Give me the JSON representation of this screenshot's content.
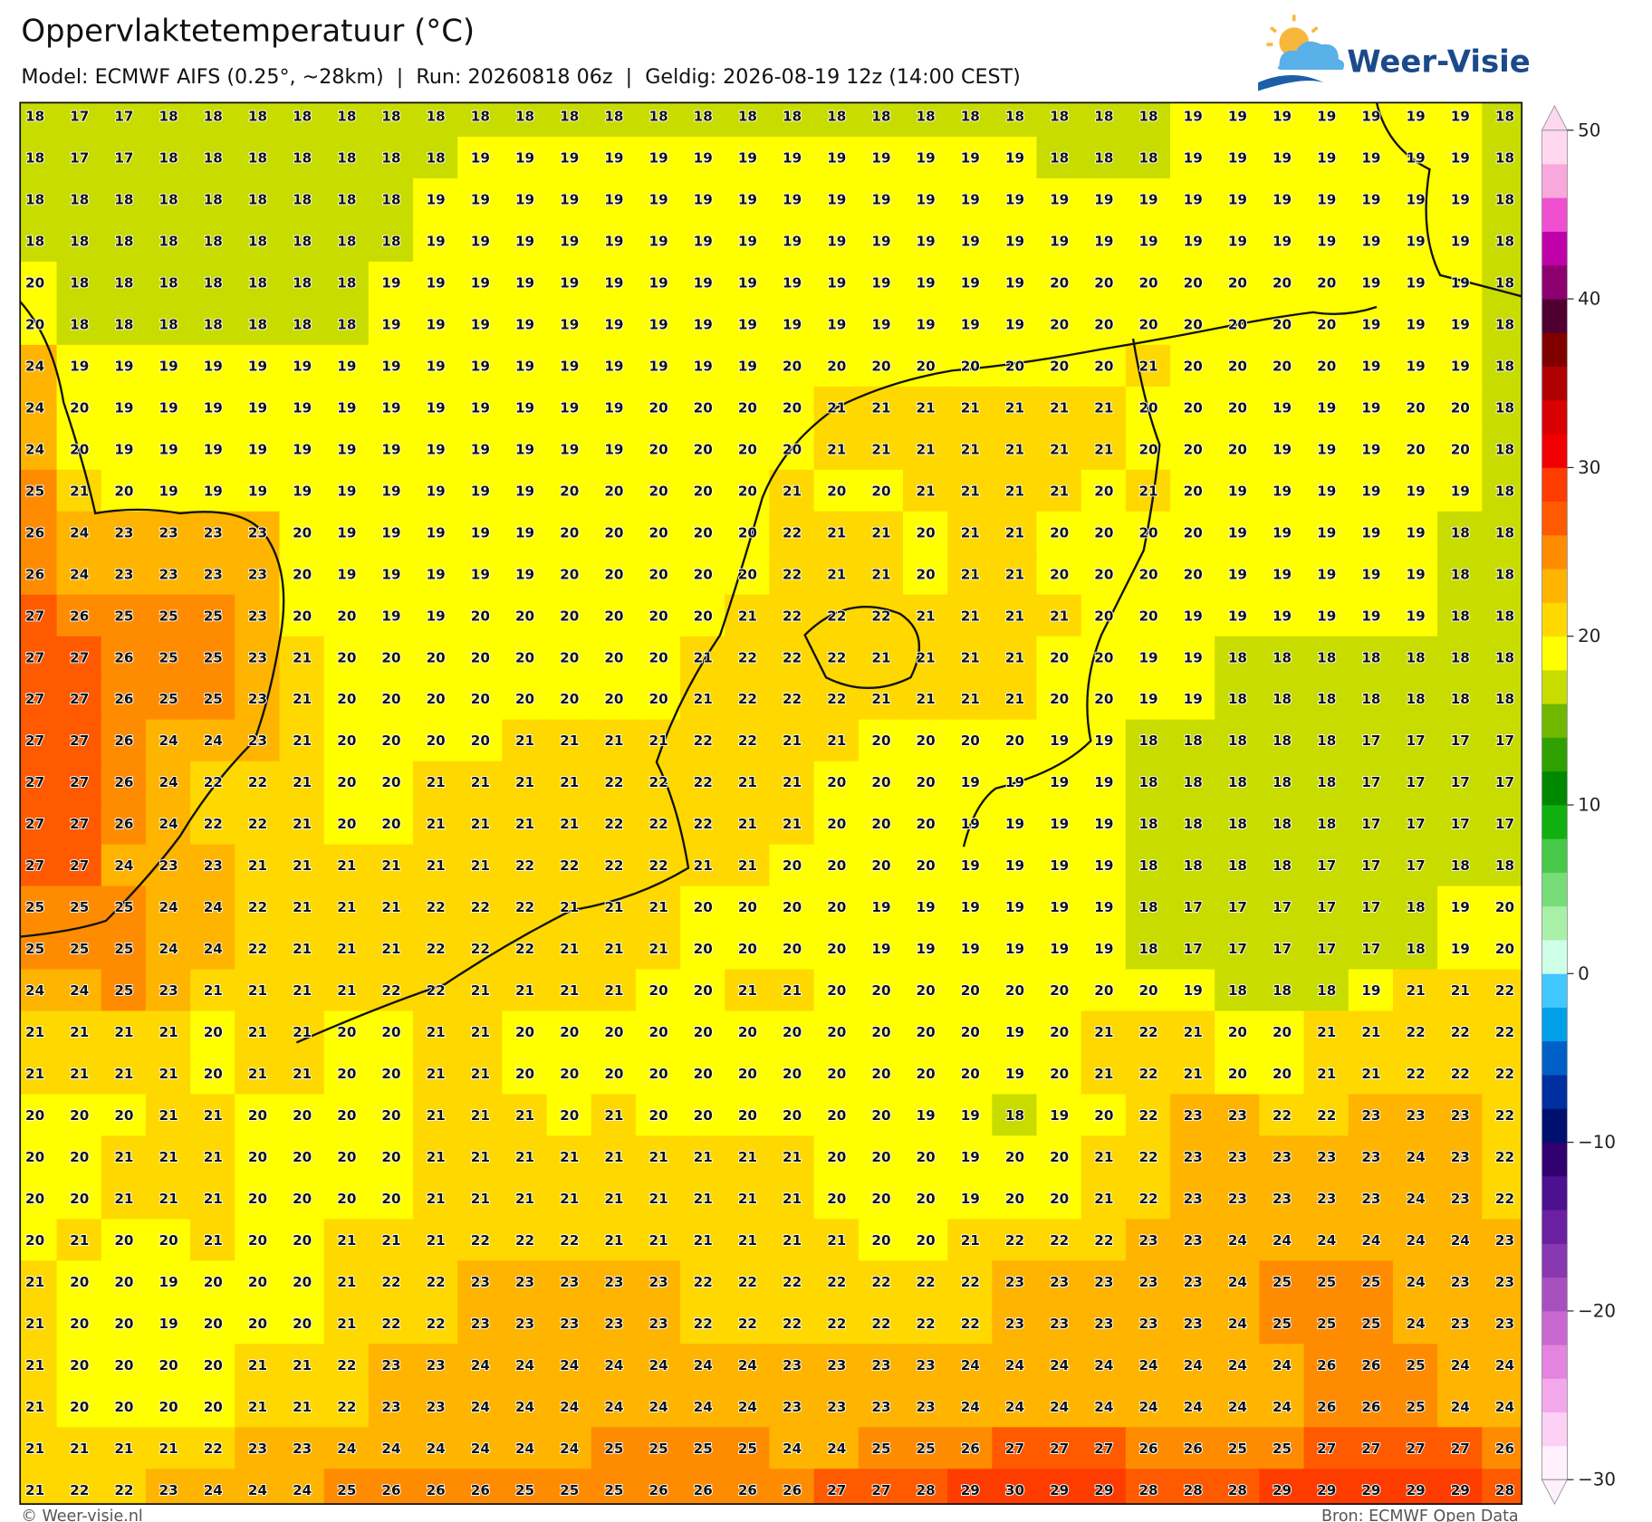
{
  "header": {
    "title": "Oppervlaktetemperatuur (°C)",
    "subtitle": "Model: ECMWF AIFS (0.25°, ~28km)  |  Run: 20260818 06z  |  Geldig: 2026-08-19 12z (14:00 CEST)",
    "logo": "Weer-Visie"
  },
  "map": {
    "grid": [
      [
        18,
        17,
        17,
        18,
        18,
        18,
        18,
        18,
        18,
        18,
        18,
        18,
        18,
        18,
        18,
        18,
        18,
        18,
        18,
        18,
        18,
        18,
        18,
        18,
        18,
        18,
        19,
        19,
        19,
        19,
        19,
        19,
        19,
        18
      ],
      [
        18,
        17,
        17,
        18,
        18,
        18,
        18,
        18,
        18,
        18,
        19,
        19,
        19,
        19,
        19,
        19,
        19,
        19,
        19,
        19,
        19,
        19,
        19,
        18,
        18,
        18,
        19,
        19,
        19,
        19,
        19,
        19,
        19,
        18
      ],
      [
        18,
        18,
        18,
        18,
        18,
        18,
        18,
        18,
        18,
        19,
        19,
        19,
        19,
        19,
        19,
        19,
        19,
        19,
        19,
        19,
        19,
        19,
        19,
        19,
        19,
        19,
        19,
        19,
        19,
        19,
        19,
        19,
        19,
        18
      ],
      [
        18,
        18,
        18,
        18,
        18,
        18,
        18,
        18,
        18,
        19,
        19,
        19,
        19,
        19,
        19,
        19,
        19,
        19,
        19,
        19,
        19,
        19,
        19,
        19,
        19,
        19,
        19,
        19,
        19,
        19,
        19,
        19,
        19,
        18
      ],
      [
        20,
        18,
        18,
        18,
        18,
        18,
        18,
        18,
        19,
        19,
        19,
        19,
        19,
        19,
        19,
        19,
        19,
        19,
        19,
        19,
        19,
        19,
        19,
        20,
        20,
        20,
        20,
        20,
        20,
        20,
        19,
        19,
        19,
        18
      ],
      [
        20,
        18,
        18,
        18,
        18,
        18,
        18,
        18,
        19,
        19,
        19,
        19,
        19,
        19,
        19,
        19,
        19,
        19,
        19,
        19,
        19,
        19,
        19,
        20,
        20,
        20,
        20,
        20,
        20,
        20,
        19,
        19,
        19,
        18
      ],
      [
        24,
        19,
        19,
        19,
        19,
        19,
        19,
        19,
        19,
        19,
        19,
        19,
        19,
        19,
        19,
        19,
        19,
        20,
        20,
        20,
        20,
        20,
        20,
        20,
        20,
        21,
        20,
        20,
        20,
        20,
        19,
        19,
        19,
        18
      ],
      [
        24,
        20,
        19,
        19,
        19,
        19,
        19,
        19,
        19,
        19,
        19,
        19,
        19,
        19,
        20,
        20,
        20,
        20,
        21,
        21,
        21,
        21,
        21,
        21,
        21,
        20,
        20,
        20,
        19,
        19,
        19,
        20,
        20,
        18
      ],
      [
        24,
        20,
        19,
        19,
        19,
        19,
        19,
        19,
        19,
        19,
        19,
        19,
        19,
        19,
        20,
        20,
        20,
        20,
        21,
        21,
        21,
        21,
        21,
        21,
        21,
        20,
        20,
        20,
        19,
        19,
        19,
        20,
        20,
        18
      ],
      [
        25,
        21,
        20,
        19,
        19,
        19,
        19,
        19,
        19,
        19,
        19,
        19,
        20,
        20,
        20,
        20,
        20,
        21,
        20,
        20,
        21,
        21,
        21,
        21,
        20,
        21,
        20,
        19,
        19,
        19,
        19,
        19,
        19,
        18
      ],
      [
        26,
        24,
        23,
        23,
        23,
        23,
        20,
        19,
        19,
        19,
        19,
        19,
        20,
        20,
        20,
        20,
        20,
        22,
        21,
        21,
        20,
        21,
        21,
        20,
        20,
        20,
        20,
        19,
        19,
        19,
        19,
        19,
        18,
        18
      ],
      [
        26,
        24,
        23,
        23,
        23,
        23,
        20,
        19,
        19,
        19,
        19,
        19,
        20,
        20,
        20,
        20,
        20,
        22,
        21,
        21,
        20,
        21,
        21,
        20,
        20,
        20,
        20,
        19,
        19,
        19,
        19,
        19,
        18,
        18
      ],
      [
        27,
        26,
        25,
        25,
        25,
        23,
        20,
        20,
        19,
        19,
        20,
        20,
        20,
        20,
        20,
        20,
        21,
        22,
        22,
        22,
        21,
        21,
        21,
        21,
        20,
        20,
        19,
        19,
        19,
        19,
        19,
        19,
        18,
        18
      ],
      [
        27,
        27,
        26,
        25,
        25,
        23,
        21,
        20,
        20,
        20,
        20,
        20,
        20,
        20,
        20,
        21,
        22,
        22,
        22,
        21,
        21,
        21,
        21,
        20,
        20,
        19,
        19,
        18,
        18,
        18,
        18,
        18,
        18,
        18
      ],
      [
        27,
        27,
        26,
        25,
        25,
        23,
        21,
        20,
        20,
        20,
        20,
        20,
        20,
        20,
        20,
        21,
        22,
        22,
        22,
        21,
        21,
        21,
        21,
        20,
        20,
        19,
        19,
        18,
        18,
        18,
        18,
        18,
        18,
        18
      ],
      [
        27,
        27,
        26,
        24,
        24,
        23,
        21,
        20,
        20,
        20,
        20,
        21,
        21,
        21,
        21,
        22,
        22,
        21,
        21,
        20,
        20,
        20,
        20,
        19,
        19,
        18,
        18,
        18,
        18,
        18,
        17,
        17,
        17,
        17
      ],
      [
        27,
        27,
        26,
        24,
        22,
        22,
        21,
        20,
        20,
        21,
        21,
        21,
        21,
        22,
        22,
        22,
        21,
        21,
        20,
        20,
        20,
        19,
        19,
        19,
        19,
        18,
        18,
        18,
        18,
        18,
        17,
        17,
        17,
        17
      ],
      [
        27,
        27,
        26,
        24,
        22,
        22,
        21,
        20,
        20,
        21,
        21,
        21,
        21,
        22,
        22,
        22,
        21,
        21,
        20,
        20,
        20,
        19,
        19,
        19,
        19,
        18,
        18,
        18,
        18,
        18,
        17,
        17,
        17,
        17
      ],
      [
        27,
        27,
        24,
        23,
        23,
        21,
        21,
        21,
        21,
        21,
        21,
        22,
        22,
        22,
        22,
        21,
        21,
        20,
        20,
        20,
        20,
        19,
        19,
        19,
        19,
        18,
        18,
        18,
        18,
        17,
        17,
        17,
        18,
        18
      ],
      [
        25,
        25,
        25,
        24,
        24,
        22,
        21,
        21,
        21,
        22,
        22,
        22,
        21,
        21,
        21,
        20,
        20,
        20,
        20,
        19,
        19,
        19,
        19,
        19,
        19,
        18,
        17,
        17,
        17,
        17,
        17,
        18,
        19,
        20
      ],
      [
        25,
        25,
        25,
        24,
        24,
        22,
        21,
        21,
        21,
        22,
        22,
        22,
        21,
        21,
        21,
        20,
        20,
        20,
        20,
        19,
        19,
        19,
        19,
        19,
        19,
        18,
        17,
        17,
        17,
        17,
        17,
        18,
        19,
        20
      ],
      [
        24,
        24,
        25,
        23,
        21,
        21,
        21,
        21,
        22,
        22,
        21,
        21,
        21,
        21,
        20,
        20,
        21,
        21,
        20,
        20,
        20,
        20,
        20,
        20,
        20,
        20,
        19,
        18,
        18,
        18,
        19,
        21,
        21,
        22
      ],
      [
        21,
        21,
        21,
        21,
        20,
        21,
        21,
        20,
        20,
        21,
        21,
        20,
        20,
        20,
        20,
        20,
        20,
        20,
        20,
        20,
        20,
        20,
        19,
        20,
        21,
        22,
        21,
        20,
        20,
        21,
        21,
        22,
        22,
        22
      ],
      [
        21,
        21,
        21,
        21,
        20,
        21,
        21,
        20,
        20,
        21,
        21,
        20,
        20,
        20,
        20,
        20,
        20,
        20,
        20,
        20,
        20,
        20,
        19,
        20,
        21,
        22,
        21,
        20,
        20,
        21,
        21,
        22,
        22,
        22
      ],
      [
        20,
        20,
        20,
        21,
        21,
        20,
        20,
        20,
        20,
        21,
        21,
        21,
        20,
        21,
        20,
        20,
        20,
        20,
        20,
        20,
        19,
        19,
        18,
        19,
        20,
        22,
        23,
        23,
        22,
        22,
        23,
        23,
        23,
        22
      ],
      [
        20,
        20,
        21,
        21,
        21,
        20,
        20,
        20,
        20,
        21,
        21,
        21,
        21,
        21,
        21,
        21,
        21,
        21,
        20,
        20,
        20,
        19,
        20,
        20,
        21,
        22,
        23,
        23,
        23,
        23,
        23,
        24,
        23,
        22
      ],
      [
        20,
        20,
        21,
        21,
        21,
        20,
        20,
        20,
        20,
        21,
        21,
        21,
        21,
        21,
        21,
        21,
        21,
        21,
        20,
        20,
        20,
        19,
        20,
        20,
        21,
        22,
        23,
        23,
        23,
        23,
        23,
        24,
        23,
        22
      ],
      [
        20,
        21,
        20,
        20,
        21,
        20,
        20,
        21,
        21,
        21,
        22,
        22,
        22,
        21,
        21,
        21,
        21,
        21,
        21,
        20,
        20,
        21,
        22,
        22,
        22,
        23,
        23,
        24,
        24,
        24,
        24,
        24,
        24,
        23
      ],
      [
        21,
        20,
        20,
        19,
        20,
        20,
        20,
        21,
        22,
        22,
        23,
        23,
        23,
        23,
        23,
        22,
        22,
        22,
        22,
        22,
        22,
        22,
        23,
        23,
        23,
        23,
        23,
        24,
        25,
        25,
        25,
        24,
        23,
        23
      ],
      [
        21,
        20,
        20,
        19,
        20,
        20,
        20,
        21,
        22,
        22,
        23,
        23,
        23,
        23,
        23,
        22,
        22,
        22,
        22,
        22,
        22,
        22,
        23,
        23,
        23,
        23,
        23,
        24,
        25,
        25,
        25,
        24,
        23,
        23
      ],
      [
        21,
        20,
        20,
        20,
        20,
        21,
        21,
        22,
        23,
        23,
        24,
        24,
        24,
        24,
        24,
        24,
        24,
        23,
        23,
        23,
        23,
        24,
        24,
        24,
        24,
        24,
        24,
        24,
        24,
        26,
        26,
        25,
        24,
        24
      ],
      [
        21,
        20,
        20,
        20,
        20,
        21,
        21,
        22,
        23,
        23,
        24,
        24,
        24,
        24,
        24,
        24,
        24,
        23,
        23,
        23,
        23,
        24,
        24,
        24,
        24,
        24,
        24,
        24,
        24,
        26,
        26,
        25,
        24,
        24
      ],
      [
        21,
        21,
        21,
        21,
        22,
        23,
        23,
        24,
        24,
        24,
        24,
        24,
        24,
        25,
        25,
        25,
        25,
        24,
        24,
        25,
        25,
        26,
        27,
        27,
        27,
        26,
        26,
        25,
        25,
        27,
        27,
        27,
        27,
        26
      ],
      [
        21,
        22,
        22,
        23,
        24,
        24,
        24,
        25,
        26,
        26,
        26,
        25,
        25,
        25,
        26,
        26,
        26,
        26,
        27,
        27,
        28,
        29,
        30,
        29,
        29,
        28,
        28,
        28,
        29,
        29,
        29,
        29,
        29,
        28
      ]
    ],
    "colorbar": {
      "lim": [
        -30,
        50
      ],
      "ticks": [
        50,
        40,
        30,
        20,
        10,
        0,
        {
          "value": -10,
          "label": "−10"
        },
        {
          "value": -20,
          "label": "−20"
        },
        {
          "value": -30,
          "label": "−30"
        }
      ],
      "colors": [
        "#fff0fc",
        "#fcd0f4",
        "#f4a8ec",
        "#e484e0",
        "#c868d0",
        "#a850c0",
        "#8838b0",
        "#6a20a0",
        "#4c1090",
        "#300070",
        "#001070",
        "#0030a0",
        "#0060c8",
        "#00a0e8",
        "#40c8ff",
        "#d0ffe8",
        "#a8f0a8",
        "#78dc78",
        "#48c848",
        "#10b010",
        "#008800",
        "#30a000",
        "#70b800",
        "#c8dc00",
        "#ffff00",
        "#ffd800",
        "#ffb400",
        "#ff8c00",
        "#ff5a00",
        "#ff3c00",
        "#f00000",
        "#d80000",
        "#b00000",
        "#800000",
        "#500030",
        "#8c0070",
        "#c000a8",
        "#f050d0",
        "#f8a8dc",
        "#ffd8f0"
      ]
    }
  },
  "footer": {
    "credit": "© Weer-visie.nl",
    "source": "Bron: ECMWF Open Data"
  }
}
